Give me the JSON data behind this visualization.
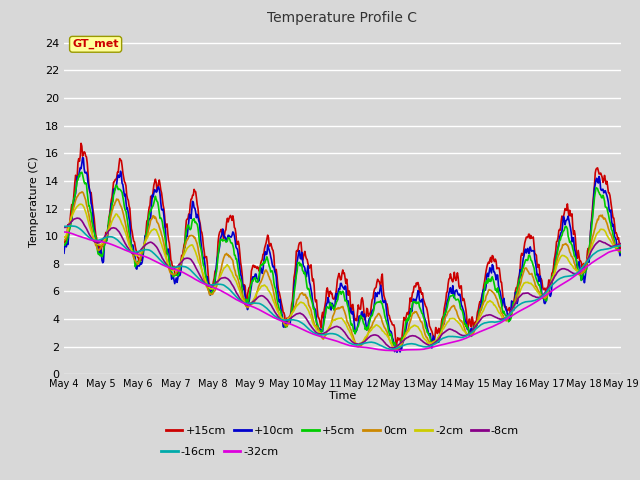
{
  "title": "Temperature Profile C",
  "xlabel": "Time",
  "ylabel": "Temperature (C)",
  "ylim": [
    0,
    25
  ],
  "yticks": [
    0,
    2,
    4,
    6,
    8,
    10,
    12,
    14,
    16,
    18,
    20,
    22,
    24
  ],
  "x_labels": [
    "May 4",
    "May 5",
    "May 6",
    "May 7",
    "May 8",
    "May 9",
    "May 10",
    "May 11",
    "May 12",
    "May 13",
    "May 14",
    "May 15",
    "May 16",
    "May 17",
    "May 18",
    "May 19"
  ],
  "series_order": [
    "+15cm",
    "+10cm",
    "+5cm",
    "0cm",
    "-2cm",
    "-8cm",
    "-16cm",
    "-32cm"
  ],
  "series": {
    "+15cm": {
      "color": "#cc0000",
      "lw": 1.2
    },
    "+10cm": {
      "color": "#0000cc",
      "lw": 1.2
    },
    "+5cm": {
      "color": "#00cc00",
      "lw": 1.2
    },
    "0cm": {
      "color": "#cc8800",
      "lw": 1.2
    },
    "-2cm": {
      "color": "#cccc00",
      "lw": 1.2
    },
    "-8cm": {
      "color": "#880088",
      "lw": 1.2
    },
    "-16cm": {
      "color": "#00aaaa",
      "lw": 1.2
    },
    "-32cm": {
      "color": "#dd00dd",
      "lw": 1.2
    }
  },
  "bg_color": "#d8d8d8",
  "plot_bg": "#d8d8d8",
  "grid_color": "#ffffff",
  "annotation_text": "GT_met",
  "annotation_color": "#cc0000",
  "annotation_bg": "#ffff99",
  "annotation_border": "#999900",
  "legend_row1": [
    "+15cm",
    "+10cm",
    "+5cm",
    "0cm",
    "-2cm",
    "-8cm"
  ],
  "legend_row2": [
    "-16cm",
    "-32cm"
  ]
}
